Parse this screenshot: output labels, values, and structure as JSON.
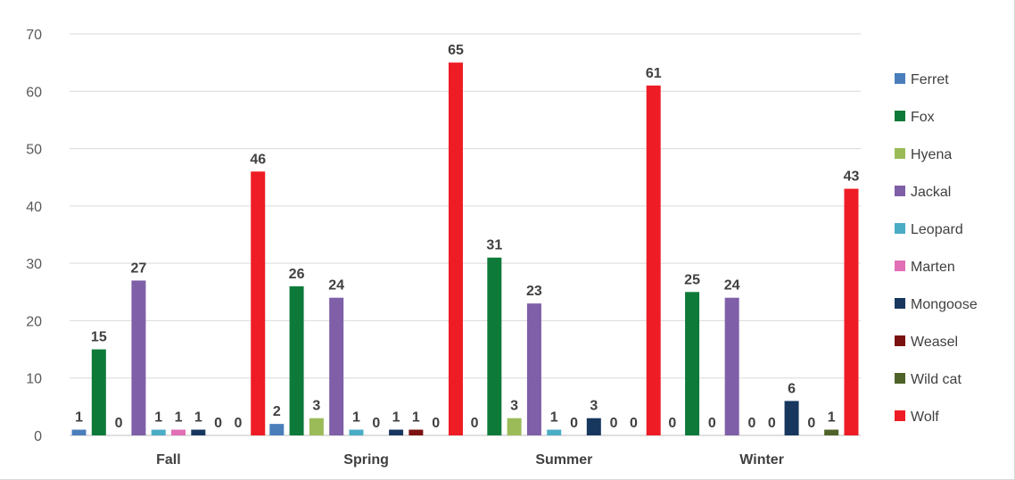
{
  "chart_data": {
    "type": "bar",
    "categories": [
      "Fall",
      "Spring",
      "Summer",
      "Winter"
    ],
    "ylim": [
      0,
      70
    ],
    "yticks": [
      0,
      10,
      20,
      30,
      40,
      50,
      60,
      70
    ],
    "grid": true,
    "legend_position": "right",
    "data_labels": true,
    "series": [
      {
        "name": "Ferret",
        "color": "#4a7ebb",
        "values": [
          1,
          2,
          0,
          0
        ]
      },
      {
        "name": "Fox",
        "color": "#0e7a3a",
        "values": [
          15,
          26,
          31,
          25
        ]
      },
      {
        "name": "Hyena",
        "color": "#9bbb59",
        "values": [
          0,
          3,
          3,
          0
        ]
      },
      {
        "name": "Jackal",
        "color": "#7f5fa8",
        "values": [
          27,
          24,
          23,
          24
        ]
      },
      {
        "name": "Leopard",
        "color": "#4bacc6",
        "values": [
          1,
          1,
          1,
          0
        ]
      },
      {
        "name": "Marten",
        "color": "#e36fb6",
        "values": [
          1,
          0,
          0,
          0
        ]
      },
      {
        "name": "Mongoose",
        "color": "#17375e",
        "values": [
          1,
          1,
          3,
          6
        ]
      },
      {
        "name": "Weasel",
        "color": "#7b1111",
        "values": [
          0,
          1,
          0,
          0
        ]
      },
      {
        "name": "Wild cat",
        "color": "#4f6228",
        "values": [
          0,
          0,
          0,
          1
        ]
      },
      {
        "name": "Wolf",
        "color": "#ee1c24",
        "values": [
          46,
          65,
          61,
          43
        ]
      }
    ]
  }
}
